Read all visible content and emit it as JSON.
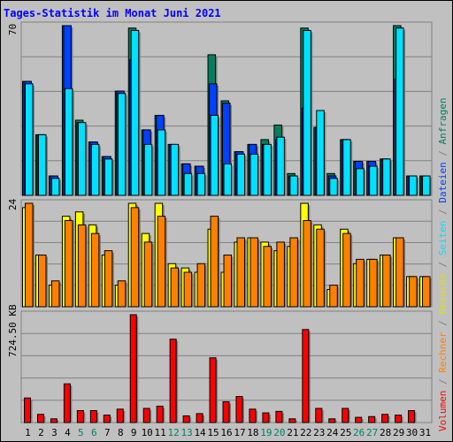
{
  "title": "Tages-Statistik im Monat Juni 2021",
  "panels": {
    "top_max_label": "70",
    "mid_max_label": "24",
    "bottom_max_label": "724.50 KB"
  },
  "legend": [
    {
      "text": "Volumen",
      "color": "#ff0000"
    },
    {
      "text": " / ",
      "color": "#808080"
    },
    {
      "text": "Rechner",
      "color": "#ff8000"
    },
    {
      "text": " / ",
      "color": "#808080"
    },
    {
      "text": "Besuche",
      "color": "#e0e000"
    },
    {
      "text": " / ",
      "color": "#808080"
    },
    {
      "text": "Seiten",
      "color": "#00e0ff"
    },
    {
      "text": " / ",
      "color": "#808080"
    },
    {
      "text": "Dateien",
      "color": "#0040ff"
    },
    {
      "text": " / ",
      "color": "#808080"
    },
    {
      "text": "Anfragen",
      "color": "#008060"
    }
  ],
  "colors": {
    "anfragen": "#008060",
    "dateien": "#0040ff",
    "seiten": "#00e0ff",
    "besuche": "#ffff00",
    "rechner": "#ff8000",
    "volumen": "#ff0000",
    "title": "#0000ff",
    "weekend_label": "#008060",
    "weekday_label": "#000000"
  },
  "chart_data": [
    {
      "type": "bar",
      "name": "top",
      "ylim": [
        0,
        70
      ],
      "categories": [
        "1",
        "2",
        "3",
        "4",
        "5",
        "6",
        "7",
        "8",
        "9",
        "10",
        "11",
        "12",
        "13",
        "14",
        "15",
        "16",
        "17",
        "18",
        "19",
        "20",
        "21",
        "22",
        "23",
        "24",
        "25",
        "26",
        "27",
        "28",
        "29",
        "30",
        "31"
      ],
      "weekend_days": [
        5,
        6,
        12,
        13,
        19,
        20,
        26,
        27
      ],
      "series": [
        {
          "key": "anfragen",
          "values": [
            47,
            25,
            8,
            70,
            31,
            22,
            16,
            43,
            69,
            27,
            33,
            21,
            13,
            12,
            58,
            39,
            18,
            21,
            23,
            29,
            9,
            69,
            28,
            9,
            23,
            14,
            14,
            15,
            70,
            8,
            8
          ]
        },
        {
          "key": "dateien",
          "values": [
            47,
            25,
            8,
            70,
            30,
            22,
            16,
            43,
            56,
            27,
            33,
            21,
            13,
            12,
            46,
            38,
            18,
            21,
            21,
            23,
            8,
            36,
            28,
            8,
            23,
            14,
            14,
            15,
            48,
            8,
            8
          ]
        },
        {
          "key": "seiten",
          "values": [
            46,
            25,
            7,
            44,
            30,
            21,
            15,
            42,
            68,
            21,
            27,
            21,
            9,
            9,
            33,
            13,
            17,
            17,
            21,
            24,
            8,
            68,
            35,
            7,
            23,
            11,
            12,
            15,
            69,
            8,
            8
          ]
        }
      ]
    },
    {
      "type": "bar",
      "name": "middle",
      "ylim": [
        0,
        24
      ],
      "categories": [
        "1",
        "2",
        "3",
        "4",
        "5",
        "6",
        "7",
        "8",
        "9",
        "10",
        "11",
        "12",
        "13",
        "14",
        "15",
        "16",
        "17",
        "18",
        "19",
        "20",
        "21",
        "22",
        "23",
        "24",
        "25",
        "26",
        "27",
        "28",
        "29",
        "30",
        "31"
      ],
      "series": [
        {
          "key": "besuche",
          "values": [
            23,
            12,
            5,
            21,
            22,
            19,
            12,
            5,
            24,
            17,
            24,
            10,
            9,
            8,
            18,
            8,
            15,
            16,
            15,
            13,
            14,
            24,
            19,
            4,
            18,
            10,
            11,
            12,
            16,
            7,
            7
          ]
        },
        {
          "key": "rechner",
          "values": [
            24,
            12,
            6,
            20,
            19,
            17,
            13,
            6,
            23,
            15,
            21,
            9,
            8,
            10,
            21,
            12,
            16,
            16,
            14,
            15,
            16,
            20,
            18,
            5,
            17,
            11,
            11,
            12,
            16,
            7,
            7
          ]
        }
      ]
    },
    {
      "type": "bar",
      "name": "bottom",
      "ylim": [
        0,
        724.5
      ],
      "ylabel": "KB",
      "categories": [
        "1",
        "2",
        "3",
        "4",
        "5",
        "6",
        "7",
        "8",
        "9",
        "10",
        "11",
        "12",
        "13",
        "14",
        "15",
        "16",
        "17",
        "18",
        "19",
        "20",
        "21",
        "22",
        "23",
        "24",
        "25",
        "26",
        "27",
        "28",
        "29",
        "30",
        "31"
      ],
      "series": [
        {
          "key": "volumen",
          "values": [
            165,
            55,
            25,
            260,
            80,
            80,
            50,
            90,
            724.5,
            95,
            110,
            560,
            45,
            60,
            435,
            140,
            175,
            90,
            65,
            75,
            25,
            625,
            95,
            25,
            95,
            35,
            40,
            55,
            50,
            80,
            0
          ]
        }
      ]
    }
  ]
}
